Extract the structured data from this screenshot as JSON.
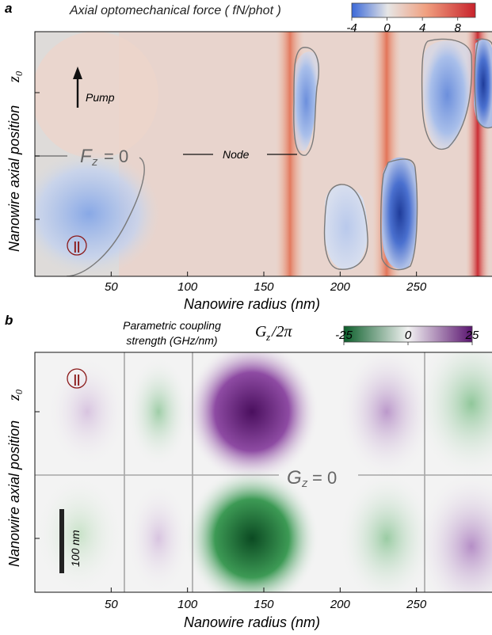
{
  "chart_data": [
    {
      "type": "heatmap",
      "panel_label": "a",
      "title": "Axial optomechanical force ( fN/phot )",
      "xlabel": "Nanowire radius (nm)",
      "ylabel": "Nanowire axial position",
      "ylabel_symbol": "z₀",
      "xlim": [
        0,
        300
      ],
      "x_ticks": [
        50,
        100,
        150,
        200,
        250
      ],
      "colorbar": {
        "range": [
          -4,
          10
        ],
        "ticks": [
          -4,
          0,
          4,
          8
        ],
        "colors": [
          "#3a68d8",
          "#dcdcdc",
          "#c8232c"
        ]
      },
      "annotations": {
        "contour": "F",
        "contour_sub": "z",
        "contour_value": "= 0",
        "node": "Node",
        "pump": "Pump",
        "polarization": "||"
      }
    },
    {
      "type": "heatmap",
      "panel_label": "b",
      "title": "Parametric coupling strength (GHz/nm)",
      "title_lines": [
        "Parametric coupling",
        "strength (GHz/nm)"
      ],
      "colorbar_symbol": "G",
      "colorbar_symbol_sub": "z",
      "colorbar_symbol_rest": "/2π",
      "xlabel": "Nanowire radius (nm)",
      "ylabel": "Nanowire axial position",
      "ylabel_symbol": "z₀",
      "xlim": [
        0,
        300
      ],
      "x_ticks": [
        50,
        100,
        150,
        200,
        250
      ],
      "colorbar": {
        "range": [
          -25,
          25
        ],
        "ticks": [
          -25,
          0,
          25
        ],
        "colors": [
          "#0b5e2a",
          "#f3f3f3",
          "#5a1470"
        ]
      },
      "annotations": {
        "contour": "G",
        "contour_sub": "z",
        "contour_value": "= 0",
        "scale_bar": "100 nm",
        "polarization": "||"
      }
    }
  ]
}
